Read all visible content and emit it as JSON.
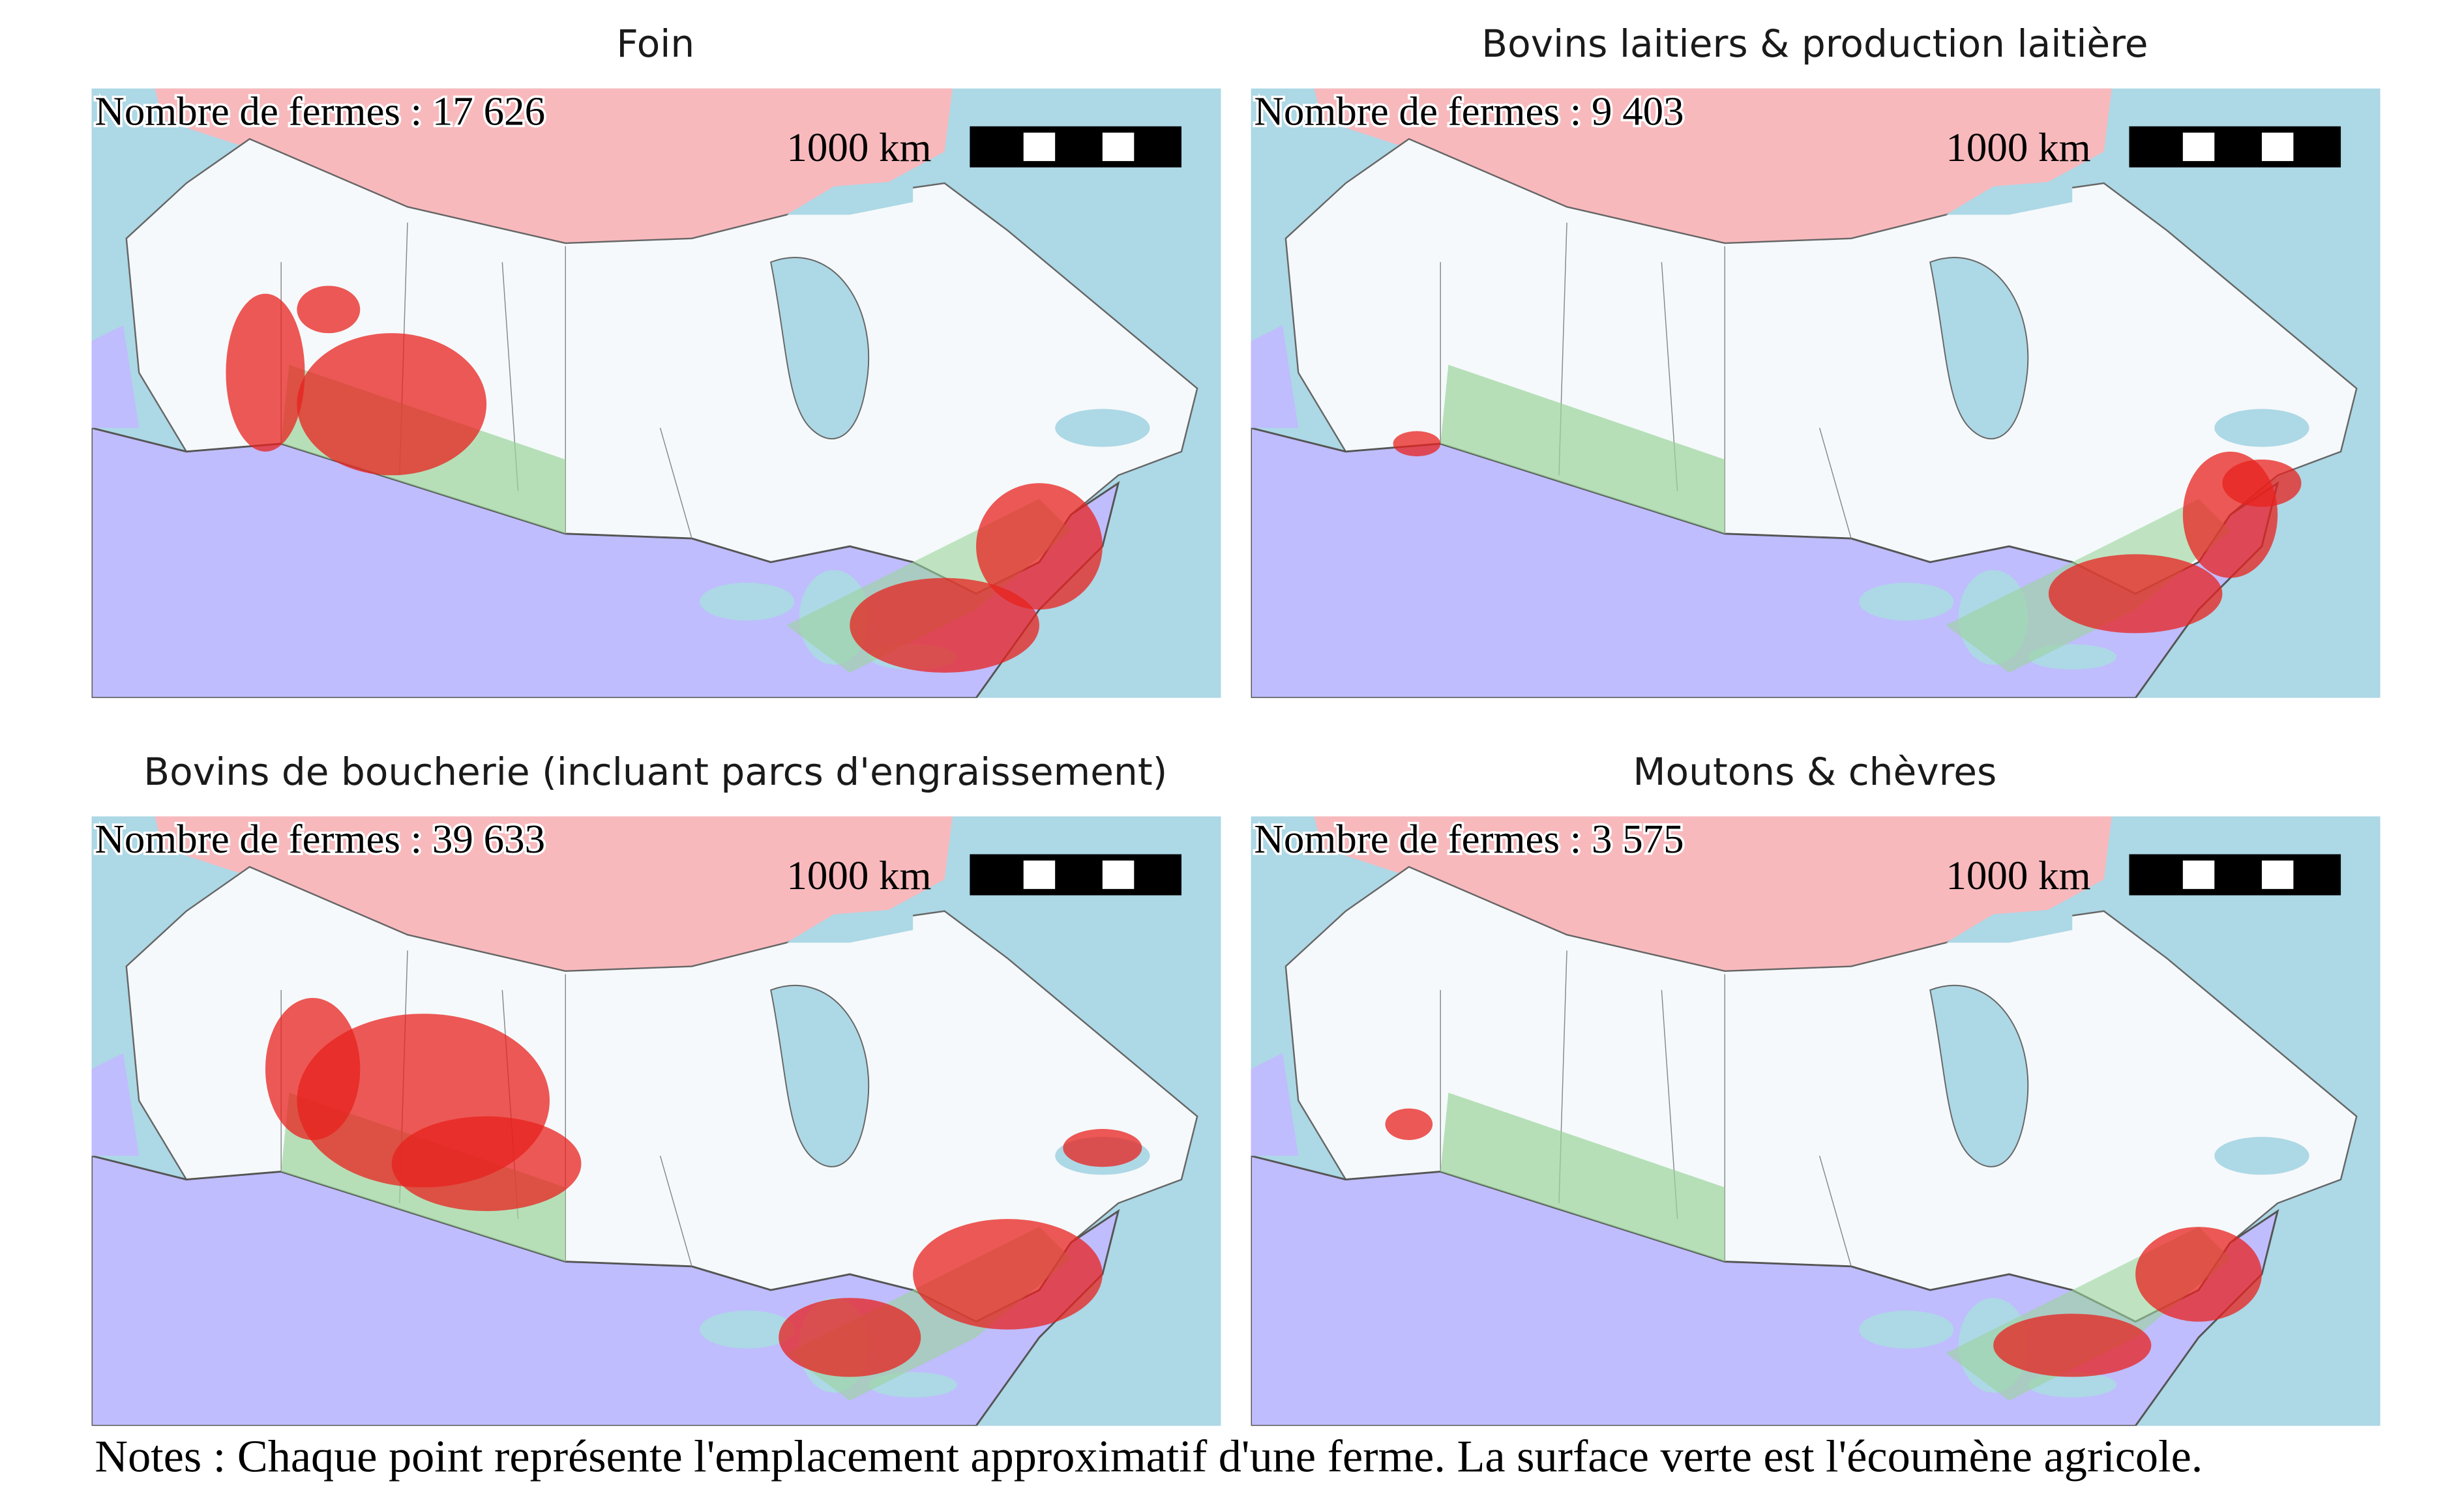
{
  "panels": [
    {
      "title": "Foin",
      "farm_count": "Nombre de fermes : 17 626",
      "scale_label": "1000 km"
    },
    {
      "title": "Bovins laitiers & production laitière",
      "farm_count": "Nombre de fermes : 9 403",
      "scale_label": "1000 km"
    },
    {
      "title": "Bovins de boucherie (incluant parcs d'engraissement)",
      "farm_count": "Nombre de fermes : 39 633",
      "scale_label": "1000 km"
    },
    {
      "title": "Moutons & chèvres",
      "farm_count": "Nombre de fermes : 3 575",
      "scale_label": "1000 km"
    }
  ],
  "notes": "Notes : Chaque point représente l'emplacement approximatif d'une ferme. La surface verte est l'écoumène agricole."
}
